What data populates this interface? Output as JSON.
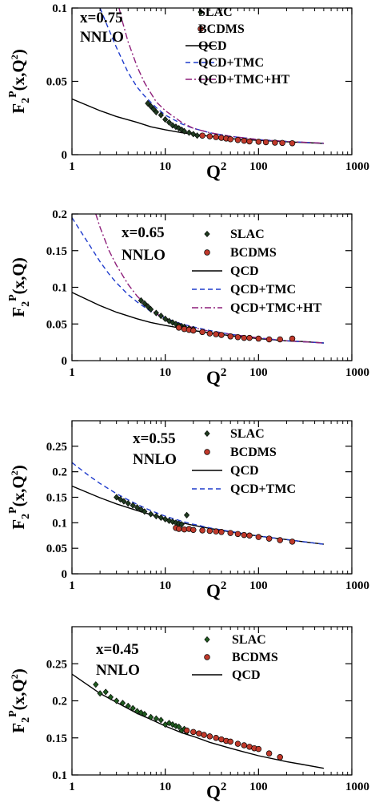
{
  "chart_data": [
    {
      "type": "scatter",
      "xlabel": "Q^2",
      "ylabel": "F_2^P(x,Q^2)",
      "x_scale": "log",
      "xlim": [
        1,
        1000
      ],
      "ylim": [
        0,
        0.1
      ],
      "x_ticks": [
        1,
        10,
        100,
        1000
      ],
      "x_tick_labels": [
        "1",
        "10",
        "100",
        "1000"
      ],
      "y_ticks": [
        0,
        0.05,
        0.1
      ],
      "y_tick_labels": [
        "0",
        "0.05",
        "0.1"
      ],
      "annotations": [
        "x=0.75",
        "NNLO"
      ],
      "legend": [
        "SLAC",
        "BCDMS",
        "QCD",
        "QCD+TMC",
        "QCD+TMC+HT"
      ],
      "legend_position": "top-right",
      "series": [
        {
          "name": "SLAC",
          "style": "diamond",
          "color": "#1f3a1f",
          "x": [
            6.5,
            7,
            7.5,
            8,
            9,
            10,
            11,
            12,
            13,
            14,
            15,
            16,
            18,
            20,
            22
          ],
          "y": [
            0.035,
            0.033,
            0.031,
            0.029,
            0.027,
            0.024,
            0.022,
            0.02,
            0.019,
            0.018,
            0.017,
            0.016,
            0.015,
            0.014,
            0.013
          ]
        },
        {
          "name": "BCDMS",
          "style": "circle",
          "color": "#c0392b",
          "x": [
            25,
            30,
            35,
            40,
            45,
            50,
            60,
            70,
            80,
            100,
            120,
            150,
            180,
            230
          ],
          "y": [
            0.013,
            0.0125,
            0.012,
            0.0115,
            0.011,
            0.0105,
            0.01,
            0.0095,
            0.009,
            0.0088,
            0.0085,
            0.0082,
            0.008,
            0.0078
          ]
        },
        {
          "name": "QCD",
          "style": "solid",
          "color": "#000000",
          "x": [
            1,
            2,
            3,
            5,
            7,
            10,
            15,
            20,
            30,
            50,
            70,
            100,
            200,
            300,
            500
          ],
          "y": [
            0.038,
            0.03,
            0.026,
            0.022,
            0.019,
            0.017,
            0.015,
            0.014,
            0.0125,
            0.011,
            0.0103,
            0.0097,
            0.0088,
            0.0083,
            0.0077
          ]
        },
        {
          "name": "QCD+TMC",
          "style": "dashed",
          "color": "#1f3bcc",
          "x": [
            2,
            2.5,
            3,
            4,
            5,
            6,
            8,
            10,
            15,
            20,
            30,
            50,
            100,
            200,
            500
          ],
          "y": [
            0.1,
            0.085,
            0.073,
            0.056,
            0.046,
            0.04,
            0.032,
            0.027,
            0.021,
            0.018,
            0.015,
            0.0125,
            0.0103,
            0.009,
            0.0078
          ]
        },
        {
          "name": "QCD+TMC+HT",
          "style": "dashdot",
          "color": "#8e1f7a",
          "x": [
            3.2,
            3.5,
            4,
            5,
            6,
            7,
            8,
            10,
            15,
            20,
            30,
            50,
            100,
            200,
            500
          ],
          "y": [
            0.1,
            0.09,
            0.077,
            0.06,
            0.049,
            0.042,
            0.036,
            0.03,
            0.022,
            0.018,
            0.015,
            0.0125,
            0.0103,
            0.009,
            0.0078
          ]
        }
      ]
    },
    {
      "type": "scatter",
      "xlabel": "Q^2",
      "ylabel": "F_2^P(x,Q)",
      "x_scale": "log",
      "xlim": [
        1,
        1000
      ],
      "ylim": [
        0,
        0.2
      ],
      "x_ticks": [
        1,
        10,
        100,
        1000
      ],
      "x_tick_labels": [
        "1",
        "10",
        "100",
        "1000"
      ],
      "y_ticks": [
        0,
        0.05,
        0.1,
        0.15,
        0.2
      ],
      "y_tick_labels": [
        "0",
        "0.05",
        "0.1",
        "0.15",
        "0.2"
      ],
      "annotations": [
        "x=0.65",
        "NNLO"
      ],
      "legend": [
        "SLAC",
        "BCDMS",
        "QCD",
        "QCD+TMC",
        "QCD+TMC+HT"
      ],
      "legend_position": "top-right",
      "series": [
        {
          "name": "SLAC",
          "style": "diamond",
          "color": "#1f3a1f",
          "x": [
            5.5,
            6,
            6.5,
            7,
            8,
            9,
            10,
            11,
            12,
            13,
            14,
            15,
            16,
            18,
            20
          ],
          "y": [
            0.082,
            0.078,
            0.074,
            0.07,
            0.065,
            0.061,
            0.057,
            0.054,
            0.052,
            0.05,
            0.048,
            0.047,
            0.046,
            0.044,
            0.043
          ]
        },
        {
          "name": "BCDMS",
          "style": "circle",
          "color": "#c0392b",
          "x": [
            14,
            16,
            18,
            20,
            25,
            30,
            35,
            40,
            50,
            60,
            70,
            80,
            100,
            130,
            170,
            230
          ],
          "y": [
            0.045,
            0.043,
            0.042,
            0.041,
            0.039,
            0.037,
            0.036,
            0.035,
            0.033,
            0.032,
            0.031,
            0.031,
            0.03,
            0.029,
            0.029,
            0.03
          ]
        },
        {
          "name": "QCD",
          "style": "solid",
          "color": "#000000",
          "x": [
            1,
            2,
            3,
            5,
            7,
            10,
            15,
            20,
            30,
            50,
            70,
            100,
            200,
            300,
            500
          ],
          "y": [
            0.093,
            0.075,
            0.066,
            0.057,
            0.052,
            0.048,
            0.044,
            0.041,
            0.038,
            0.034,
            0.032,
            0.03,
            0.027,
            0.026,
            0.024
          ]
        },
        {
          "name": "QCD+TMC",
          "style": "dashed",
          "color": "#1f3bcc",
          "x": [
            1,
            1.5,
            2,
            2.5,
            3,
            4,
            5,
            7,
            10,
            15,
            20,
            30,
            50,
            100,
            200,
            500
          ],
          "y": [
            0.195,
            0.16,
            0.135,
            0.118,
            0.106,
            0.09,
            0.08,
            0.067,
            0.058,
            0.05,
            0.046,
            0.041,
            0.036,
            0.031,
            0.027,
            0.024
          ]
        },
        {
          "name": "QCD+TMC+HT",
          "style": "dashdot",
          "color": "#8e1f7a",
          "x": [
            1.8,
            2,
            2.5,
            3,
            4,
            5,
            6,
            7,
            8,
            10,
            15,
            20,
            30,
            50,
            100,
            200,
            500
          ],
          "y": [
            0.2,
            0.182,
            0.15,
            0.13,
            0.104,
            0.088,
            0.078,
            0.07,
            0.064,
            0.057,
            0.049,
            0.045,
            0.04,
            0.036,
            0.031,
            0.027,
            0.024
          ]
        }
      ]
    },
    {
      "type": "scatter",
      "xlabel": "Q^2",
      "ylabel": "F_2^P(x,Q^2)",
      "x_scale": "log",
      "xlim": [
        1,
        1000
      ],
      "ylim": [
        0,
        0.3
      ],
      "x_ticks": [
        1,
        10,
        100,
        1000
      ],
      "x_tick_labels": [
        "1",
        "10",
        "100",
        "1000"
      ],
      "y_ticks": [
        0,
        0.05,
        0.1,
        0.15,
        0.2,
        0.25
      ],
      "y_tick_labels": [
        "0",
        "0.05",
        "0.1",
        "0.15",
        "0.2",
        "0.25"
      ],
      "annotations": [
        "x=0.55",
        "NNLO"
      ],
      "legend": [
        "SLAC",
        "BCDMS",
        "QCD",
        "QCD+TMC"
      ],
      "legend_position": "top-right",
      "series": [
        {
          "name": "SLAC",
          "style": "diamond",
          "color": "#1f3a1f",
          "x": [
            3,
            3.3,
            3.6,
            4,
            4.5,
            5,
            5.5,
            6,
            7,
            8,
            9,
            10,
            11,
            12,
            13,
            14,
            15,
            17
          ],
          "y": [
            0.15,
            0.146,
            0.142,
            0.138,
            0.134,
            0.13,
            0.126,
            0.122,
            0.117,
            0.113,
            0.11,
            0.107,
            0.104,
            0.102,
            0.1,
            0.098,
            0.097,
            0.115
          ]
        },
        {
          "name": "BCDMS",
          "style": "circle",
          "color": "#c0392b",
          "x": [
            13,
            14,
            16,
            18,
            20,
            25,
            30,
            35,
            40,
            50,
            60,
            70,
            80,
            100,
            130,
            170,
            230
          ],
          "y": [
            0.09,
            0.088,
            0.087,
            0.088,
            0.086,
            0.085,
            0.084,
            0.083,
            0.082,
            0.08,
            0.078,
            0.076,
            0.075,
            0.072,
            0.069,
            0.066,
            0.063
          ]
        },
        {
          "name": "QCD",
          "style": "solid",
          "color": "#000000",
          "x": [
            1,
            2,
            3,
            5,
            7,
            10,
            15,
            20,
            30,
            50,
            70,
            100,
            200,
            300,
            500
          ],
          "y": [
            0.172,
            0.149,
            0.137,
            0.124,
            0.116,
            0.108,
            0.1,
            0.095,
            0.089,
            0.082,
            0.078,
            0.074,
            0.067,
            0.063,
            0.058
          ]
        },
        {
          "name": "QCD+TMC",
          "style": "dashed",
          "color": "#1f3bcc",
          "x": [
            1,
            1.5,
            2,
            3,
            4,
            5,
            7,
            10,
            15,
            20,
            30,
            50,
            100,
            200,
            500
          ],
          "y": [
            0.218,
            0.193,
            0.177,
            0.157,
            0.145,
            0.136,
            0.124,
            0.113,
            0.103,
            0.097,
            0.09,
            0.083,
            0.074,
            0.067,
            0.058
          ]
        }
      ]
    },
    {
      "type": "scatter",
      "xlabel": "Q^2",
      "ylabel": "F_2^P(x,Q^2)",
      "x_scale": "log",
      "xlim": [
        1,
        1000
      ],
      "ylim": [
        0.1,
        0.3
      ],
      "x_ticks": [
        1,
        10,
        100,
        1000
      ],
      "x_tick_labels": [
        "1",
        "10",
        "100",
        "1000"
      ],
      "y_ticks": [
        0.1,
        0.15,
        0.2,
        0.25
      ],
      "y_tick_labels": [
        "0.1",
        "0.15",
        "0.2",
        "0.25"
      ],
      "annotations": [
        "x=0.45",
        "NNLO"
      ],
      "legend": [
        "SLAC",
        "BCDMS",
        "QCD"
      ],
      "legend_position": "top-right",
      "series": [
        {
          "name": "SLAC",
          "style": "diamond",
          "color": "#1f5a1f",
          "x": [
            1.8,
            2,
            2.3,
            2.6,
            3,
            3.5,
            4,
            4.5,
            5,
            5.5,
            6,
            7,
            8,
            9,
            10,
            11,
            12,
            13,
            14,
            15,
            16,
            17
          ],
          "y": [
            0.222,
            0.21,
            0.212,
            0.205,
            0.2,
            0.197,
            0.193,
            0.19,
            0.186,
            0.184,
            0.182,
            0.178,
            0.176,
            0.174,
            0.168,
            0.17,
            0.168,
            0.166,
            0.165,
            0.16,
            0.162,
            0.158
          ]
        },
        {
          "name": "BCDMS",
          "style": "circle",
          "color": "#c0392b",
          "x": [
            17,
            20,
            23,
            26,
            30,
            35,
            40,
            45,
            50,
            60,
            70,
            80,
            90,
            100,
            130,
            170
          ],
          "y": [
            0.16,
            0.158,
            0.156,
            0.154,
            0.152,
            0.15,
            0.148,
            0.146,
            0.145,
            0.142,
            0.14,
            0.138,
            0.136,
            0.135,
            0.129,
            0.124
          ]
        },
        {
          "name": "QCD",
          "style": "solid",
          "color": "#000000",
          "x": [
            1,
            2,
            3,
            5,
            7,
            10,
            15,
            20,
            30,
            50,
            70,
            100,
            200,
            300,
            500
          ],
          "y": [
            0.236,
            0.21,
            0.198,
            0.183,
            0.175,
            0.166,
            0.157,
            0.152,
            0.144,
            0.136,
            0.131,
            0.126,
            0.118,
            0.114,
            0.109
          ]
        }
      ]
    }
  ]
}
